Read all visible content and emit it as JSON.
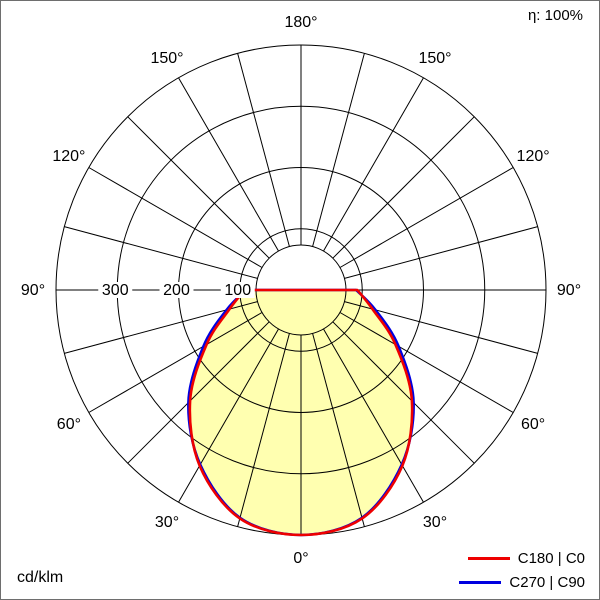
{
  "header": {
    "efficiency_label": "η: 100%"
  },
  "footer": {
    "unit_label": "cd/klm"
  },
  "legend": {
    "items": [
      {
        "label": "C180 | C0",
        "color": "#ee0000"
      },
      {
        "label": "C270 | C90",
        "color": "#0000e0"
      }
    ]
  },
  "chart_data": {
    "type": "polar",
    "subtype": "luminous-intensity-distribution",
    "unit": "cd/klm",
    "angle_unit": "deg",
    "gamma_angles": [
      0,
      15,
      30,
      45,
      60,
      75,
      90,
      105,
      120,
      135,
      150,
      165,
      180
    ],
    "series": [
      {
        "name": "C180 | C0",
        "color": "#ee0000",
        "values": [
          400,
          386,
          331,
          256,
          178,
          121,
          92,
          0,
          0,
          0,
          0,
          0,
          0
        ]
      },
      {
        "name": "C270 | C90",
        "color": "#0000e0",
        "values": [
          400,
          385,
          329,
          260,
          184,
          126,
          90,
          0,
          0,
          0,
          0,
          0,
          0
        ]
      }
    ],
    "fill_color": "#ffffb0",
    "radial_ticks": [
      100,
      200,
      300
    ],
    "radial_max": 400,
    "angle_labels": [
      "0°",
      "30°",
      "60°",
      "90°",
      "120°",
      "150°",
      "180°"
    ],
    "grid": {
      "spoke_step_deg": 15,
      "color": "#000000",
      "legend_position": "bottom-right"
    },
    "efficiency": "η: 100%"
  }
}
